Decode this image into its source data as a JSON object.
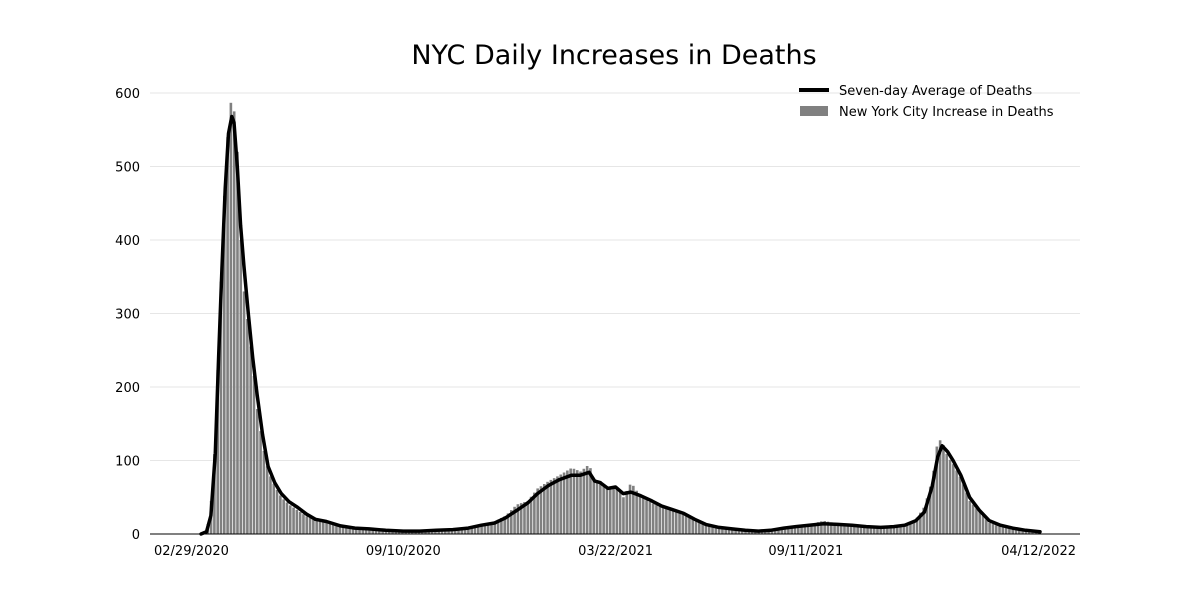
{
  "chart_data": {
    "type": "bar",
    "title": "NYC Daily Increases in Deaths",
    "xlabel": "",
    "ylabel": "",
    "grid": true,
    "legend_placement": "top-right",
    "x_range": [
      "2020-02-29",
      "2022-04-12"
    ],
    "x_tick_labels": [
      "02/29/2020",
      "09/10/2020",
      "03/22/2021",
      "09/11/2021",
      "04/12/2022"
    ],
    "x_tick_dates": [
      "2020-02-29",
      "2020-09-10",
      "2021-03-22",
      "2021-09-11",
      "2022-04-12"
    ],
    "ylim": [
      0,
      600
    ],
    "y_ticks": [
      0,
      100,
      200,
      300,
      400,
      500,
      600
    ],
    "colors": {
      "bars": "#808080",
      "line": "#000000",
      "grid": "#e6e6e6",
      "axis": "#000000"
    },
    "series": [
      {
        "name": "Seven-day Average of Deaths",
        "kind": "line",
        "points": [
          {
            "x": "2020-03-10",
            "y": 0
          },
          {
            "x": "2020-03-15",
            "y": 3
          },
          {
            "x": "2020-03-19",
            "y": 25
          },
          {
            "x": "2020-03-23",
            "y": 110
          },
          {
            "x": "2020-03-26",
            "y": 240
          },
          {
            "x": "2020-03-29",
            "y": 360
          },
          {
            "x": "2020-04-01",
            "y": 470
          },
          {
            "x": "2020-04-04",
            "y": 545
          },
          {
            "x": "2020-04-07",
            "y": 568
          },
          {
            "x": "2020-04-09",
            "y": 560
          },
          {
            "x": "2020-04-12",
            "y": 500
          },
          {
            "x": "2020-04-15",
            "y": 420
          },
          {
            "x": "2020-04-18",
            "y": 365
          },
          {
            "x": "2020-04-22",
            "y": 300
          },
          {
            "x": "2020-04-26",
            "y": 240
          },
          {
            "x": "2020-04-30",
            "y": 190
          },
          {
            "x": "2020-05-05",
            "y": 135
          },
          {
            "x": "2020-05-10",
            "y": 92
          },
          {
            "x": "2020-05-16",
            "y": 70
          },
          {
            "x": "2020-05-22",
            "y": 55
          },
          {
            "x": "2020-05-29",
            "y": 44
          },
          {
            "x": "2020-06-06",
            "y": 36
          },
          {
            "x": "2020-06-14",
            "y": 27
          },
          {
            "x": "2020-06-22",
            "y": 20
          },
          {
            "x": "2020-07-02",
            "y": 17
          },
          {
            "x": "2020-07-15",
            "y": 11
          },
          {
            "x": "2020-07-28",
            "y": 8
          },
          {
            "x": "2020-08-10",
            "y": 7
          },
          {
            "x": "2020-08-25",
            "y": 5
          },
          {
            "x": "2020-09-10",
            "y": 4
          },
          {
            "x": "2020-09-25",
            "y": 4
          },
          {
            "x": "2020-10-10",
            "y": 5
          },
          {
            "x": "2020-10-25",
            "y": 6
          },
          {
            "x": "2020-11-08",
            "y": 8
          },
          {
            "x": "2020-11-20",
            "y": 12
          },
          {
            "x": "2020-12-02",
            "y": 15
          },
          {
            "x": "2020-12-12",
            "y": 22
          },
          {
            "x": "2020-12-22",
            "y": 32
          },
          {
            "x": "2021-01-01",
            "y": 42
          },
          {
            "x": "2021-01-10",
            "y": 55
          },
          {
            "x": "2021-01-20",
            "y": 66
          },
          {
            "x": "2021-01-30",
            "y": 74
          },
          {
            "x": "2021-02-10",
            "y": 80
          },
          {
            "x": "2021-02-18",
            "y": 80
          },
          {
            "x": "2021-02-26",
            "y": 84
          },
          {
            "x": "2021-03-03",
            "y": 72
          },
          {
            "x": "2021-03-08",
            "y": 70
          },
          {
            "x": "2021-03-15",
            "y": 62
          },
          {
            "x": "2021-03-22",
            "y": 64
          },
          {
            "x": "2021-03-29",
            "y": 55
          },
          {
            "x": "2021-04-05",
            "y": 57
          },
          {
            "x": "2021-04-14",
            "y": 52
          },
          {
            "x": "2021-04-24",
            "y": 45
          },
          {
            "x": "2021-05-03",
            "y": 38
          },
          {
            "x": "2021-05-13",
            "y": 33
          },
          {
            "x": "2021-05-23",
            "y": 28
          },
          {
            "x": "2021-06-02",
            "y": 20
          },
          {
            "x": "2021-06-12",
            "y": 13
          },
          {
            "x": "2021-06-24",
            "y": 9
          },
          {
            "x": "2021-07-06",
            "y": 7
          },
          {
            "x": "2021-07-18",
            "y": 5
          },
          {
            "x": "2021-07-30",
            "y": 4
          },
          {
            "x": "2021-08-10",
            "y": 5
          },
          {
            "x": "2021-08-22",
            "y": 8
          },
          {
            "x": "2021-09-02",
            "y": 10
          },
          {
            "x": "2021-09-14",
            "y": 12
          },
          {
            "x": "2021-09-27",
            "y": 14
          },
          {
            "x": "2021-10-10",
            "y": 13
          },
          {
            "x": "2021-10-23",
            "y": 12
          },
          {
            "x": "2021-11-05",
            "y": 10
          },
          {
            "x": "2021-11-18",
            "y": 9
          },
          {
            "x": "2021-11-30",
            "y": 10
          },
          {
            "x": "2021-12-10",
            "y": 12
          },
          {
            "x": "2021-12-20",
            "y": 18
          },
          {
            "x": "2021-12-28",
            "y": 30
          },
          {
            "x": "2022-01-04",
            "y": 65
          },
          {
            "x": "2022-01-09",
            "y": 105
          },
          {
            "x": "2022-01-13",
            "y": 120
          },
          {
            "x": "2022-01-18",
            "y": 112
          },
          {
            "x": "2022-01-23",
            "y": 100
          },
          {
            "x": "2022-01-30",
            "y": 80
          },
          {
            "x": "2022-02-07",
            "y": 50
          },
          {
            "x": "2022-02-16",
            "y": 32
          },
          {
            "x": "2022-02-25",
            "y": 18
          },
          {
            "x": "2022-03-07",
            "y": 12
          },
          {
            "x": "2022-03-18",
            "y": 8
          },
          {
            "x": "2022-03-30",
            "y": 5
          },
          {
            "x": "2022-04-12",
            "y": 3
          }
        ]
      },
      {
        "name": "New York City Increase in Deaths",
        "kind": "bar",
        "bar_samples": [
          {
            "x": "2020-03-10",
            "y": 0
          },
          {
            "x": "2020-03-15",
            "y": 3
          },
          {
            "x": "2020-03-19",
            "y": 45
          },
          {
            "x": "2020-03-23",
            "y": 130
          },
          {
            "x": "2020-03-26",
            "y": 270
          },
          {
            "x": "2020-03-29",
            "y": 380
          },
          {
            "x": "2020-04-01",
            "y": 500
          },
          {
            "x": "2020-04-04",
            "y": 560
          },
          {
            "x": "2020-04-07",
            "y": 600
          },
          {
            "x": "2020-04-09",
            "y": 575
          },
          {
            "x": "2020-04-12",
            "y": 520
          },
          {
            "x": "2020-04-15",
            "y": 400
          },
          {
            "x": "2020-04-18",
            "y": 330
          },
          {
            "x": "2020-04-22",
            "y": 280
          },
          {
            "x": "2020-04-26",
            "y": 230
          },
          {
            "x": "2020-04-30",
            "y": 170
          },
          {
            "x": "2020-05-05",
            "y": 120
          },
          {
            "x": "2020-05-10",
            "y": 85
          },
          {
            "x": "2020-05-16",
            "y": 65
          },
          {
            "x": "2020-05-22",
            "y": 50
          },
          {
            "x": "2020-05-29",
            "y": 40
          },
          {
            "x": "2020-06-06",
            "y": 32
          },
          {
            "x": "2020-06-14",
            "y": 24
          },
          {
            "x": "2020-06-22",
            "y": 18
          },
          {
            "x": "2020-07-02",
            "y": 15
          },
          {
            "x": "2020-07-15",
            "y": 10
          },
          {
            "x": "2020-07-28",
            "y": 8
          },
          {
            "x": "2020-08-10",
            "y": 6
          },
          {
            "x": "2020-08-25",
            "y": 5
          },
          {
            "x": "2020-09-10",
            "y": 4
          },
          {
            "x": "2020-09-25",
            "y": 5
          },
          {
            "x": "2020-10-10",
            "y": 6
          },
          {
            "x": "2020-10-25",
            "y": 6
          },
          {
            "x": "2020-11-08",
            "y": 9
          },
          {
            "x": "2020-11-20",
            "y": 13
          },
          {
            "x": "2020-12-02",
            "y": 17
          },
          {
            "x": "2020-12-12",
            "y": 25
          },
          {
            "x": "2020-12-22",
            "y": 40
          },
          {
            "x": "2021-01-01",
            "y": 45
          },
          {
            "x": "2021-01-10",
            "y": 62
          },
          {
            "x": "2021-01-20",
            "y": 72
          },
          {
            "x": "2021-01-30",
            "y": 80
          },
          {
            "x": "2021-02-10",
            "y": 90
          },
          {
            "x": "2021-02-18",
            "y": 85
          },
          {
            "x": "2021-02-26",
            "y": 95
          },
          {
            "x": "2021-03-03",
            "y": 68
          },
          {
            "x": "2021-03-08",
            "y": 72
          },
          {
            "x": "2021-03-15",
            "y": 60
          },
          {
            "x": "2021-03-22",
            "y": 65
          },
          {
            "x": "2021-03-29",
            "y": 50
          },
          {
            "x": "2021-04-05",
            "y": 70
          },
          {
            "x": "2021-04-14",
            "y": 50
          },
          {
            "x": "2021-04-24",
            "y": 42
          },
          {
            "x": "2021-05-03",
            "y": 36
          },
          {
            "x": "2021-05-13",
            "y": 34
          },
          {
            "x": "2021-05-23",
            "y": 26
          },
          {
            "x": "2021-06-02",
            "y": 18
          },
          {
            "x": "2021-06-12",
            "y": 12
          },
          {
            "x": "2021-06-24",
            "y": 8
          },
          {
            "x": "2021-07-06",
            "y": 7
          },
          {
            "x": "2021-07-18",
            "y": 5
          },
          {
            "x": "2021-07-30",
            "y": 4
          },
          {
            "x": "2021-08-10",
            "y": 6
          },
          {
            "x": "2021-08-22",
            "y": 9
          },
          {
            "x": "2021-09-02",
            "y": 11
          },
          {
            "x": "2021-09-14",
            "y": 13
          },
          {
            "x": "2021-09-27",
            "y": 18
          },
          {
            "x": "2021-10-10",
            "y": 14
          },
          {
            "x": "2021-10-23",
            "y": 12
          },
          {
            "x": "2021-11-05",
            "y": 11
          },
          {
            "x": "2021-11-18",
            "y": 9
          },
          {
            "x": "2021-11-30",
            "y": 11
          },
          {
            "x": "2021-12-10",
            "y": 13
          },
          {
            "x": "2021-12-20",
            "y": 20
          },
          {
            "x": "2021-12-28",
            "y": 38
          },
          {
            "x": "2022-01-04",
            "y": 75
          },
          {
            "x": "2022-01-09",
            "y": 130
          },
          {
            "x": "2022-01-13",
            "y": 125
          },
          {
            "x": "2022-01-18",
            "y": 105
          },
          {
            "x": "2022-01-23",
            "y": 95
          },
          {
            "x": "2022-01-30",
            "y": 75
          },
          {
            "x": "2022-02-07",
            "y": 45
          },
          {
            "x": "2022-02-16",
            "y": 30
          },
          {
            "x": "2022-02-25",
            "y": 15
          },
          {
            "x": "2022-03-07",
            "y": 10
          },
          {
            "x": "2022-03-18",
            "y": 7
          },
          {
            "x": "2022-03-30",
            "y": 5
          },
          {
            "x": "2022-04-12",
            "y": 3
          }
        ]
      }
    ]
  }
}
